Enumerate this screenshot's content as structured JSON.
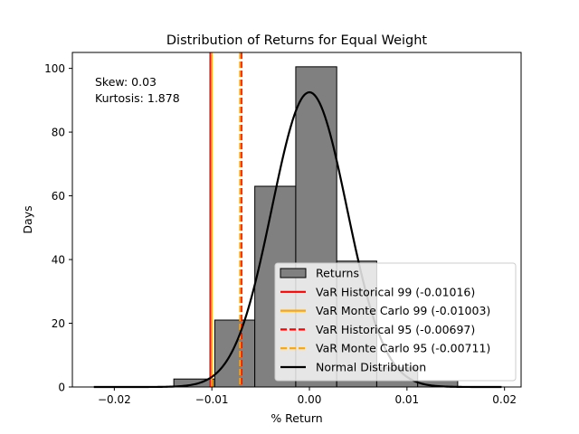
{
  "chart_data": {
    "type": "bar",
    "title": "Distribution of Returns for Equal Weight",
    "xlabel": "% Return",
    "ylabel": "Days",
    "xlim": [
      -0.0243,
      0.0217
    ],
    "ylim": [
      0,
      105
    ],
    "xticks": [
      -0.02,
      -0.01,
      0.0,
      0.01,
      0.02
    ],
    "xtick_labels": [
      "−0.02",
      "−0.01",
      "0.00",
      "0.01",
      "0.02"
    ],
    "yticks": [
      0,
      20,
      40,
      60,
      80,
      100
    ],
    "ytick_labels": [
      "0",
      "20",
      "40",
      "60",
      "80",
      "100"
    ],
    "grid": false,
    "legend_position": "lower right",
    "histogram": {
      "name": "Returns",
      "color": "#808080",
      "edge_color": "#000000",
      "bins": [
        {
          "x0": -0.0221,
          "x1": -0.018,
          "count": 0
        },
        {
          "x0": -0.018,
          "x1": -0.0139,
          "count": 0
        },
        {
          "x0": -0.0139,
          "x1": -0.0097,
          "count": 2.5
        },
        {
          "x0": -0.0097,
          "x1": -0.0056,
          "count": 21
        },
        {
          "x0": -0.0056,
          "x1": -0.0014,
          "count": 63
        },
        {
          "x0": -0.0014,
          "x1": 0.0028,
          "count": 100.5
        },
        {
          "x0": 0.0028,
          "x1": 0.0069,
          "count": 39.5
        },
        {
          "x0": 0.0069,
          "x1": 0.0111,
          "count": 6
        },
        {
          "x0": 0.0111,
          "x1": 0.0152,
          "count": 2
        }
      ]
    },
    "vlines": [
      {
        "name": "VaR Historical 99 (-0.01016)",
        "x": -0.01016,
        "color": "#ff0000",
        "style": "solid"
      },
      {
        "name": "VaR Monte Carlo 99 (-0.01003)",
        "x": -0.01003,
        "color": "#ffa500",
        "style": "solid"
      },
      {
        "name": "VaR Historical 95 (-0.00697)",
        "x": -0.00697,
        "color": "#ff0000",
        "style": "dashed"
      },
      {
        "name": "VaR Monte Carlo 95 (-0.00711)",
        "x": -0.00711,
        "color": "#ffa500",
        "style": "dashed"
      }
    ],
    "curve": {
      "name": "Normal Distribution",
      "color": "#000000",
      "mean": 0.0,
      "peak": 92.5,
      "sigma": 0.00385,
      "x_range": [
        -0.0221,
        0.0197
      ]
    },
    "annotations": [
      "Skew: 0.03",
      "Kurtosis: 1.878"
    ]
  }
}
